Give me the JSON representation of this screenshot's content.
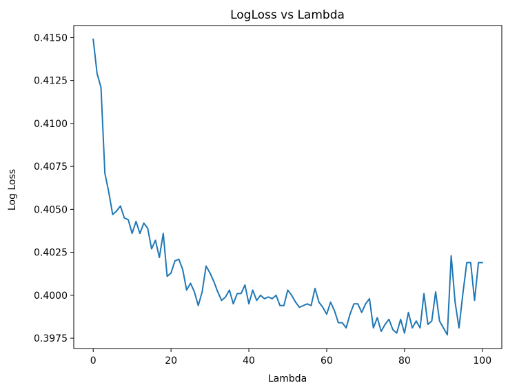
{
  "chart_data": {
    "type": "line",
    "title": "LogLoss vs Lambda",
    "xlabel": "Lambda",
    "ylabel": "Log Loss",
    "xlim": [
      -5,
      105
    ],
    "ylim": [
      0.3969,
      0.4157
    ],
    "xticks": [
      0,
      20,
      40,
      60,
      80,
      100
    ],
    "yticks": [
      0.3975,
      0.4,
      0.4025,
      0.405,
      0.4075,
      0.41,
      0.4125,
      0.415
    ],
    "ytick_labels": [
      "0.3975",
      "0.4000",
      "0.4025",
      "0.4050",
      "0.4075",
      "0.4100",
      "0.4125",
      "0.4150"
    ],
    "grid": false,
    "series": [
      {
        "color": "#1f77b4",
        "x": [
          0,
          1,
          2,
          3,
          4,
          5,
          6,
          7,
          8,
          9,
          10,
          11,
          12,
          13,
          14,
          15,
          16,
          17,
          18,
          19,
          20,
          21,
          22,
          23,
          24,
          25,
          26,
          27,
          28,
          29,
          30,
          31,
          32,
          33,
          34,
          35,
          36,
          37,
          38,
          39,
          40,
          41,
          42,
          43,
          44,
          45,
          46,
          47,
          48,
          49,
          50,
          51,
          52,
          53,
          54,
          55,
          56,
          57,
          58,
          59,
          60,
          61,
          62,
          63,
          64,
          65,
          66,
          67,
          68,
          69,
          70,
          71,
          72,
          73,
          74,
          75,
          76,
          77,
          78,
          79,
          80,
          81,
          82,
          83,
          84,
          85,
          86,
          87,
          88,
          89,
          90,
          91,
          92,
          93,
          94,
          95,
          96,
          97,
          98,
          99,
          100
        ],
        "y": [
          0.4149,
          0.4129,
          0.4121,
          0.4071,
          0.406,
          0.4047,
          0.4049,
          0.4052,
          0.4045,
          0.4044,
          0.4036,
          0.4043,
          0.4036,
          0.4042,
          0.4039,
          0.4027,
          0.4032,
          0.4022,
          0.4036,
          0.4011,
          0.4013,
          0.402,
          0.4021,
          0.4015,
          0.4003,
          0.4007,
          0.4002,
          0.3994,
          0.4002,
          0.4017,
          0.4013,
          0.4008,
          0.4002,
          0.3997,
          0.3999,
          0.4003,
          0.3995,
          0.4001,
          0.4001,
          0.4006,
          0.3995,
          0.4003,
          0.3997,
          0.4,
          0.3998,
          0.3999,
          0.3998,
          0.4,
          0.3994,
          0.3994,
          0.4003,
          0.4,
          0.3996,
          0.3993,
          0.3994,
          0.3995,
          0.3994,
          0.4004,
          0.3996,
          0.3993,
          0.3989,
          0.3996,
          0.3991,
          0.3984,
          0.3984,
          0.3981,
          0.3989,
          0.3995,
          0.3995,
          0.399,
          0.3995,
          0.3998,
          0.3981,
          0.3987,
          0.3979,
          0.3983,
          0.3986,
          0.398,
          0.3978,
          0.3986,
          0.3978,
          0.399,
          0.3981,
          0.3985,
          0.3981,
          0.4001,
          0.3983,
          0.3985,
          0.4002,
          0.3985,
          0.3981,
          0.3977,
          0.4023,
          0.3996,
          0.3981,
          0.4001,
          0.4019,
          0.4019,
          0.3997,
          0.4019,
          0.4019
        ]
      }
    ]
  }
}
